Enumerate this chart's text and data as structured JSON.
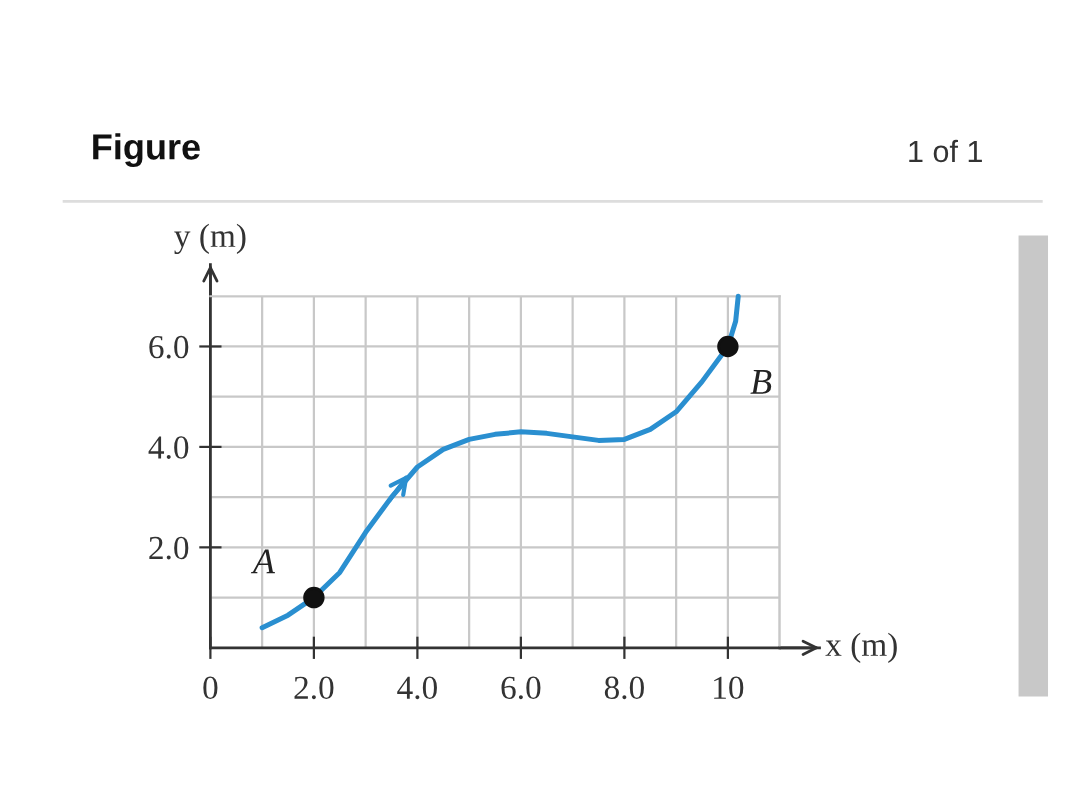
{
  "chart_data": {
    "type": "line",
    "title": "Figure",
    "xlabel": "x (m)",
    "ylabel": "y (m)",
    "x": [
      1.0,
      1.5,
      2.0,
      2.5,
      3.0,
      3.5,
      4.0,
      4.5,
      5.0,
      5.5,
      6.0,
      6.5,
      7.0,
      7.5,
      8.0,
      8.5,
      9.0,
      9.5,
      10.0,
      10.15,
      10.2
    ],
    "series": [
      {
        "color": "#2a8fd0",
        "marker": "none",
        "values": [
          0.4,
          0.65,
          1.0,
          1.5,
          2.3,
          3.0,
          3.6,
          3.95,
          4.15,
          4.25,
          4.3,
          4.27,
          4.2,
          4.13,
          4.15,
          4.35,
          4.7,
          5.3,
          6.0,
          6.5,
          7.0
        ]
      },
      {
        "type": "scatter",
        "marker": "circle",
        "color": "#111111",
        "x": [
          2.0,
          10.0
        ],
        "values": [
          1.0,
          6.0
        ]
      }
    ],
    "annotations": [
      {
        "text": "A",
        "x": 2.0,
        "y": 1.0
      },
      {
        "text": "B",
        "x": 10.0,
        "y": 6.0
      },
      "1 of 1"
    ],
    "xlim": [
      0,
      11
    ],
    "ylim": [
      0,
      7
    ],
    "xticks": [
      {
        "value": 0,
        "label": "0"
      },
      {
        "value": 1,
        "label": null
      },
      {
        "value": 2,
        "label": "2.0"
      },
      {
        "value": 3,
        "label": null
      },
      {
        "value": 4,
        "label": "4.0"
      },
      {
        "value": 5,
        "label": null
      },
      {
        "value": 6,
        "label": "6.0"
      },
      {
        "value": 7,
        "label": null
      },
      {
        "value": 8,
        "label": "8.0"
      },
      {
        "value": 9,
        "label": null
      },
      {
        "value": 10,
        "label": "10"
      },
      {
        "value": 11,
        "label": null
      }
    ],
    "yticks": [
      {
        "value": 1,
        "label": null
      },
      {
        "value": 2,
        "label": "2.0"
      },
      {
        "value": 3,
        "label": null
      },
      {
        "value": 4,
        "label": "4.0"
      },
      {
        "value": 5,
        "label": null
      },
      {
        "value": 6,
        "label": "6.0"
      },
      {
        "value": 7,
        "label": null
      }
    ],
    "grid": true,
    "line_style": "solid"
  }
}
